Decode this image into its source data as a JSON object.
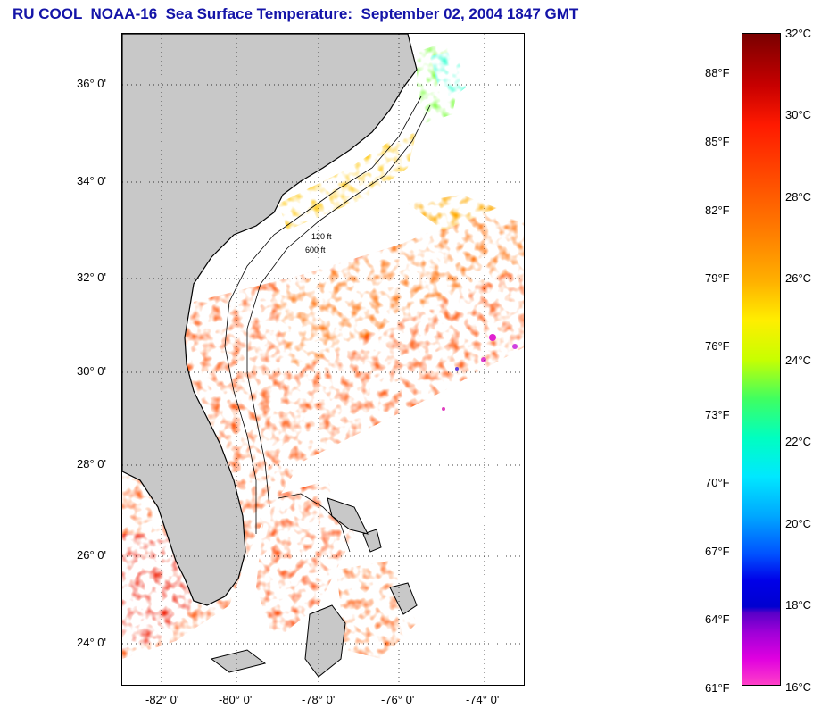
{
  "title": "RU COOL  NOAA-16  Sea Surface Temperature:  September 02, 2004 1847 GMT",
  "map": {
    "lat_labels": [
      "36° 0'",
      "34° 0'",
      "32° 0'",
      "30° 0'",
      "28° 0'",
      "26° 0'",
      "24° 0'"
    ],
    "lon_labels": [
      "-82° 0'",
      "-80° 0'",
      "-78° 0'",
      "-76° 0'",
      "-74° 0'"
    ],
    "isobath_labels": [
      "120 ft",
      "600 ft"
    ],
    "colors": {
      "land": "#c8c8c8",
      "coast": "#000000",
      "no_data": "#ffffff"
    }
  },
  "colorbar": {
    "fahrenheit_labels": [
      "88°F",
      "85°F",
      "82°F",
      "79°F",
      "76°F",
      "73°F",
      "70°F",
      "67°F",
      "64°F",
      "61°F"
    ],
    "celsius_labels": [
      "32°C",
      "30°C",
      "28°C",
      "26°C",
      "24°C",
      "22°C",
      "20°C",
      "18°C",
      "16°C"
    ],
    "range_c": [
      16,
      32
    ]
  }
}
